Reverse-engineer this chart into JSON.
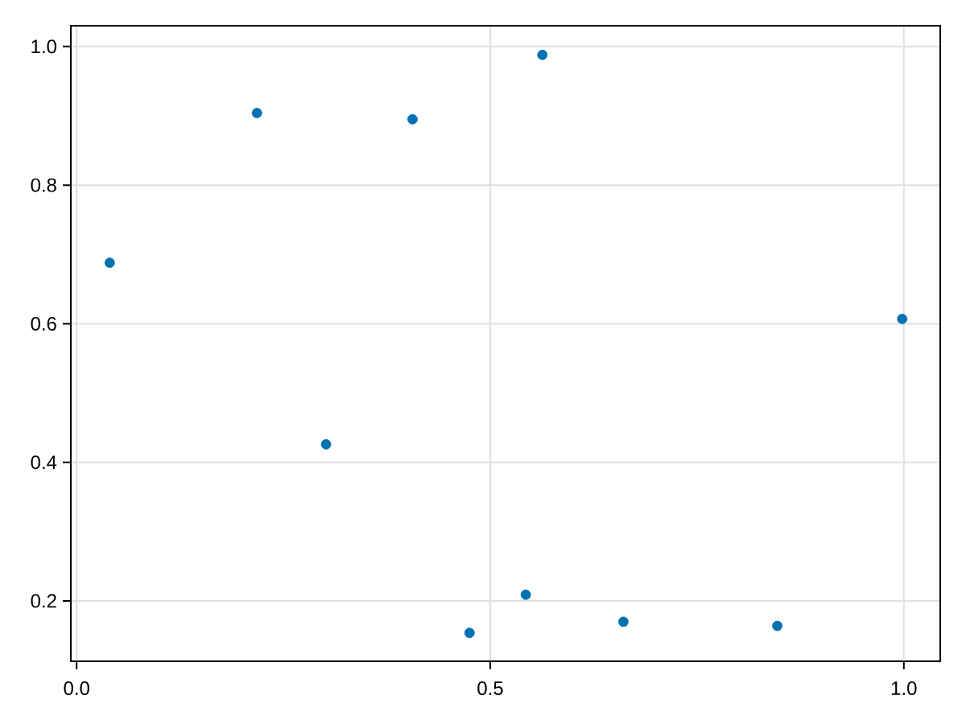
{
  "chart_data": {
    "type": "scatter",
    "x": [
      0.04,
      0.218,
      0.3015,
      0.406,
      0.475,
      0.543,
      0.563,
      0.661,
      0.847,
      0.998
    ],
    "values": [
      0.688,
      0.904,
      0.426,
      0.895,
      0.154,
      0.209,
      0.988,
      0.17,
      0.164,
      0.607
    ],
    "color": "#0072b2",
    "marker": "circle",
    "xlim": [
      -0.007,
      1.044
    ],
    "ylim": [
      0.113,
      1.03
    ],
    "xticks": [
      {
        "value": 0,
        "label": "0.0"
      },
      {
        "value": 0.5,
        "label": "0.5"
      },
      {
        "value": 1,
        "label": "1.0"
      }
    ],
    "yticks": [
      0.2,
      0.4,
      0.6,
      0.8,
      {
        "value": 1,
        "label": "1.0"
      }
    ],
    "grid": true
  }
}
